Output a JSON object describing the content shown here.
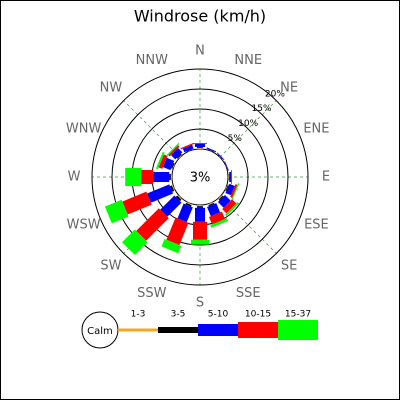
{
  "chart_data": {
    "type": "windrose",
    "title": "Windrose (km/h)",
    "directions": [
      "N",
      "NNE",
      "NE",
      "ENE",
      "E",
      "ESE",
      "SE",
      "SSE",
      "S",
      "SSW",
      "SW",
      "WSW",
      "W",
      "WNW",
      "NW",
      "NNW"
    ],
    "calm": {
      "label": "Calm",
      "value": 3,
      "value_label": "3%"
    },
    "rlim": [
      0,
      20
    ],
    "rticks": [
      {
        "value": 5,
        "label": "5%"
      },
      {
        "value": 10,
        "label": "10%"
      },
      {
        "value": 15,
        "label": "15%"
      },
      {
        "value": 20,
        "label": "20%"
      }
    ],
    "series": [
      {
        "name": "1-3",
        "color": "#f5a623",
        "values": [
          0.3,
          0.1,
          0.1,
          0.1,
          0.2,
          0.2,
          0.3,
          0.3,
          0.3,
          0.3,
          0.3,
          0.3,
          0.3,
          0.2,
          0.2,
          0.1
        ]
      },
      {
        "name": "3-5",
        "color": "#000000",
        "values": [
          0.2,
          0.1,
          0.1,
          0,
          0.1,
          0.2,
          0.3,
          0.3,
          0.4,
          0.4,
          0.5,
          0.5,
          0.4,
          0.3,
          0.3,
          0.1
        ]
      },
      {
        "name": "5-10",
        "color": "#0000ff",
        "values": [
          0.8,
          0.3,
          0.2,
          0.2,
          0.5,
          1.5,
          2,
          2.5,
          3.5,
          4,
          5,
          6,
          4,
          2,
          1.5,
          1
        ]
      },
      {
        "name": "10-15",
        "color": "#ff0000",
        "values": [
          0.2,
          0,
          0,
          0,
          0.2,
          0.5,
          1.5,
          2,
          4.5,
          6,
          8,
          6.5,
          3,
          1,
          0.5,
          0.3
        ]
      },
      {
        "name": "15-37",
        "color": "#00ff00",
        "values": [
          0,
          0,
          0,
          0,
          0,
          0.3,
          0.5,
          0.7,
          1.2,
          2,
          4.5,
          4.5,
          4,
          0.5,
          0.3,
          0
        ]
      }
    ]
  }
}
